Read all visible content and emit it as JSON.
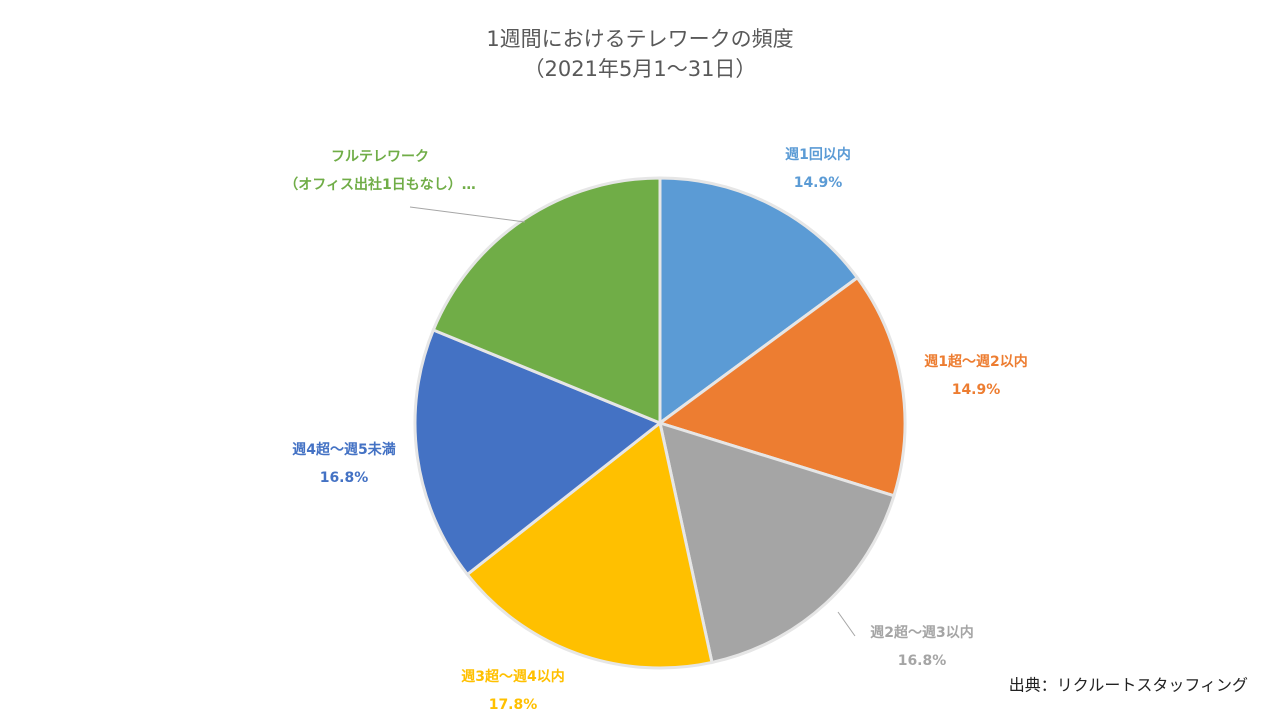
{
  "chart_data": {
    "type": "pie",
    "title": "1週間におけるテレワークの頻度",
    "subtitle": "（2021年5月1～31日）",
    "source": "出典：リクルートスタッフィング",
    "categories": [
      "週1回以内",
      "週1超～週2以内",
      "週2超～週3以内",
      "週3超～週4以内",
      "週4超～週5未満",
      "フルテレワーク\n（オフィス出社1日もなし）…"
    ],
    "values": [
      14.9,
      14.9,
      16.8,
      17.8,
      16.8,
      18.8
    ],
    "value_labels": [
      "14.9%",
      "14.9%",
      "16.8%",
      "17.8%",
      "16.8%",
      null
    ],
    "colors": [
      "#5b9bd5",
      "#ed7d31",
      "#a5a5a5",
      "#ffc000",
      "#4472c4",
      "#70ad47"
    ]
  }
}
